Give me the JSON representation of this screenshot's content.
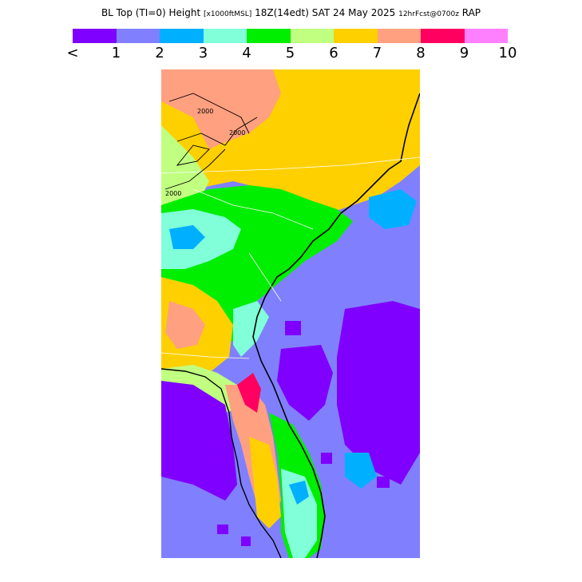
{
  "title": {
    "text": "BL Top (TI=0) Height",
    "units": "[x1000ftMSL]",
    "valid": "18Z(14edt) SAT 24 May 2025",
    "run": "12hrFcst@0700z",
    "model": "RAP"
  },
  "scale": {
    "colors": [
      "#8000ff",
      "#8080ff",
      "#00b0ff",
      "#80ffd8",
      "#00ee00",
      "#c0ff80",
      "#ffd000",
      "#ffa080",
      "#ff0060",
      "#ff80ff"
    ],
    "ticks": [
      "<",
      "1",
      "2",
      "3",
      "4",
      "5",
      "6",
      "7",
      "8",
      "9",
      "10"
    ]
  },
  "map": {
    "contour_labels": [
      "2000",
      "2000",
      "2000"
    ]
  }
}
